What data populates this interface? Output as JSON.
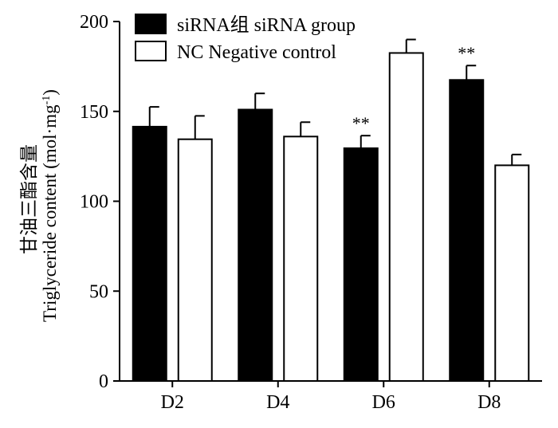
{
  "chart_data": {
    "type": "bar",
    "categories": [
      "D2",
      "D4",
      "D6",
      "D8"
    ],
    "series": [
      {
        "name": "siRNA组 siRNA group",
        "values": [
          141.5,
          151,
          129.5,
          167.5
        ],
        "errors": [
          11,
          9,
          7,
          8
        ],
        "annotations": [
          "",
          "",
          "**",
          "**"
        ],
        "fill": "#000000"
      },
      {
        "name": "NC Negative control",
        "values": [
          134.5,
          136,
          182.5,
          120
        ],
        "errors": [
          13,
          8,
          7.5,
          6
        ],
        "annotations": [
          "",
          "",
          "",
          ""
        ],
        "fill": "#ffffff"
      }
    ],
    "ylabel_cn": "甘油三酯含量",
    "ylabel_en": "Triglyceride content (mol·mg",
    "ylabel_sup": "-1",
    "ylabel_close": ")",
    "ylim": [
      0,
      200
    ],
    "yticks": [
      0,
      50,
      100,
      150,
      200
    ],
    "legend_position": "top-left",
    "grid": false
  }
}
